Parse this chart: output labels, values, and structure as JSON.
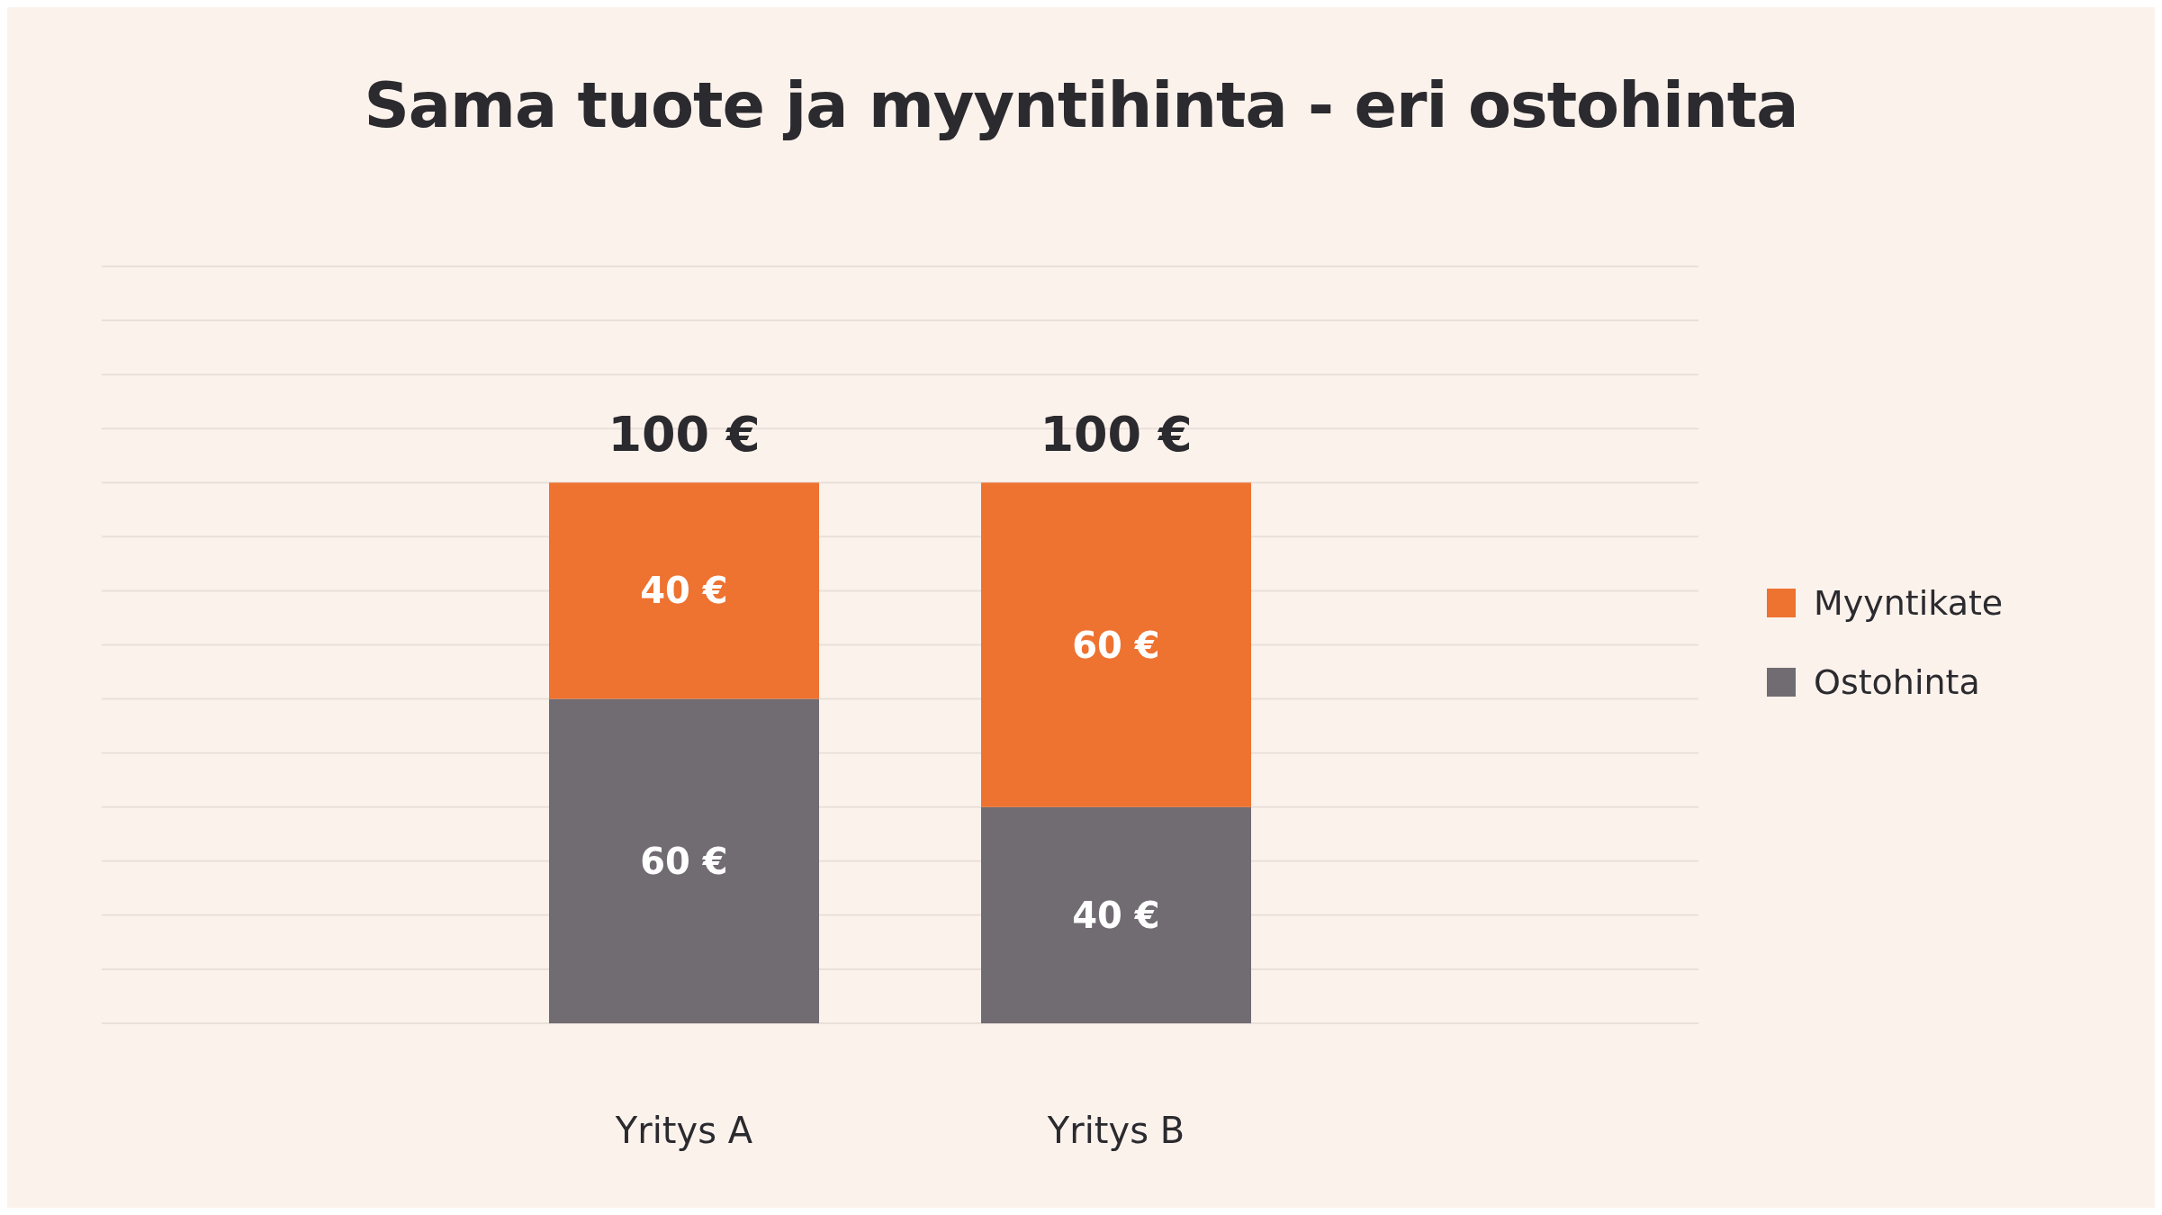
{
  "chart_data": {
    "type": "bar",
    "title": "Sama tuote ja myyntihinta - eri ostohinta",
    "categories": [
      "Yritys A",
      "Yritys B"
    ],
    "stacked": true,
    "series": [
      {
        "name": "Ostohinta",
        "color": "#716b72",
        "values": [
          60,
          40
        ],
        "value_labels": [
          "60 €",
          "40 €"
        ]
      },
      {
        "name": "Myyntikate",
        "color": "#ee7230",
        "values": [
          40,
          60
        ],
        "value_labels": [
          "40 €",
          "60 €"
        ]
      }
    ],
    "totals": [
      "100 €",
      "100 €"
    ],
    "ylim": [
      0,
      140
    ],
    "yticks": [
      {
        "value": 0,
        "label": null
      },
      {
        "value": 10,
        "label": null
      },
      {
        "value": 20,
        "label": null
      },
      {
        "value": 30,
        "label": null
      },
      {
        "value": 40,
        "label": null
      },
      {
        "value": 50,
        "label": null
      },
      {
        "value": 60,
        "label": null
      },
      {
        "value": 70,
        "label": null
      },
      {
        "value": 80,
        "label": null
      },
      {
        "value": 90,
        "label": null
      },
      {
        "value": 100,
        "label": null
      },
      {
        "value": 110,
        "label": null
      },
      {
        "value": 120,
        "label": null
      },
      {
        "value": 130,
        "label": null
      },
      {
        "value": 140,
        "label": null
      }
    ],
    "tick_labels": "x",
    "grid": "y",
    "legend": "right"
  }
}
